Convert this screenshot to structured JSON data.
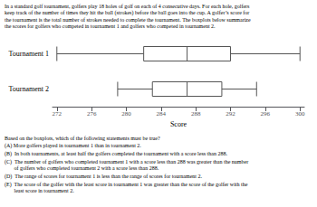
{
  "chart_data": {
    "type": "boxplot",
    "title": "In a standard golf tournament, golfers play 18 holes of golf on each of 4 consecutive days. For each hole, golfers\nkeep track of the number of times they hit the ball (strokes) before the ball goes into the cup. A golfer’s score for\nthe tournament is the total number of strokes needed to complete the tournament. The boxplots below summarize\nthe scores for golfers who competed in tournament 1 and golfers who competed in tournament 2.",
    "categories": [
      "Tournament 1",
      "Tournament 2"
    ],
    "values": [
      [
        272,
        282,
        287,
        292,
        300
      ],
      [
        279,
        283,
        287,
        291,
        295
      ]
    ],
    "color": "#555555",
    "xlabel": "Score",
    "xlim": [
      271.5,
      300.5
    ],
    "xticks": [
      272,
      276,
      280,
      284,
      288,
      292,
      296,
      300
    ],
    "grid": false,
    "annotations": [
      "Based on the boxplots, which of the following statements must be true?",
      "(A) More golfers played in tournament 1 than in tournament 2.",
      "(B)  In both tournaments, at least half the golfers completed the tournament with a score less than 288.",
      "(C)  The number of golfers who completed tournament 1 with a score less than 288 was greater than the number\n       of golfers who completed tournament 2 with a score less than 288.",
      "(D)  The range of scores for tournament 1 is less than the range of scores for tournament 2.",
      "(E)  The score of the golfer with the least score in tournament 1 was greater than the score of the golfer with the\n       least score in tournament 2."
    ]
  }
}
